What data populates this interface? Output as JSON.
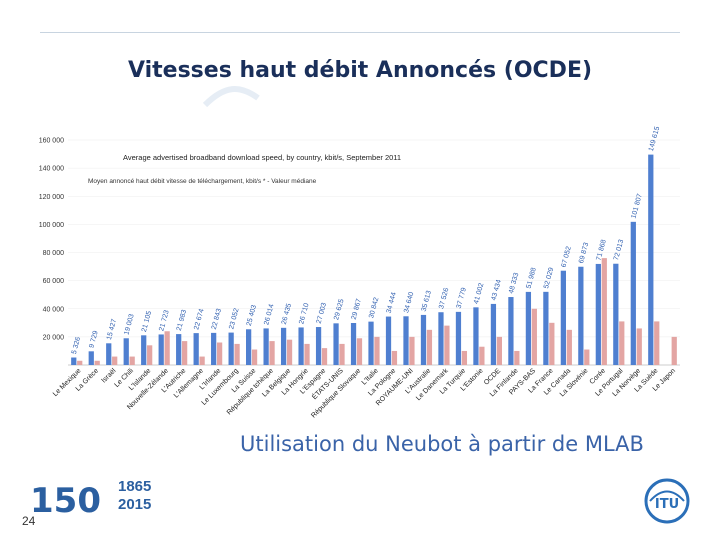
{
  "slide": {
    "title": "Vitesses haut débit Annoncés (OCDE)",
    "caption": "Utilisation du Neubot à partir de  MLAB",
    "page_number": "24",
    "anniversary_year_start": "1865",
    "anniversary_year_end": "2015",
    "anniversary_number": "150",
    "org_logo_text": "ITU"
  },
  "colors": {
    "series_mean": "#4f7fd0",
    "series_median": "#e3a5a3",
    "title": "#1a2f5a",
    "caption": "#3a63a8",
    "bar_label_mean": "#2f5fb0",
    "bar_label_median": "#b85a57"
  },
  "chart_data": {
    "type": "bar",
    "title": "Average advertised broadband download speed, by country, kbit/s, September 2011",
    "legend": "Moyen annoncé haut débit vitesse  de téléchargement, kbit/s * - Valeur médiane",
    "legend_placement": "top-left",
    "xlabel": "",
    "ylabel": "",
    "ylim": [
      0,
      160000
    ],
    "yticks": [
      "20 000",
      "40 000",
      "60 000",
      "80 000",
      "100 000",
      "120 000",
      "140 000",
      "160 000"
    ],
    "categories": [
      "Le Mexique",
      "La Grèce",
      "Israël",
      "Le Chili",
      "L'Islande",
      "Nouvelle-Zélande",
      "L'Autriche",
      "L'Allemagne",
      "L'Irlande",
      "Le Luxembourg",
      "La Suisse",
      "République tchèque",
      "La Belgique",
      "La Hongrie",
      "L'Espagne",
      "ÉTATS-UNIS",
      "République Slovaque",
      "L'Italie",
      "La Pologne",
      "ROYAUME-UNI",
      "L'Australie",
      "Le Danemark",
      "La Turquie",
      "L'Estonie",
      "OCDE",
      "La Finlande",
      "PAYS-BAS",
      "La France",
      "Le Canada",
      "La Slovénie",
      "Corée",
      "Le Portugal",
      "La Norvège",
      "La Suède",
      "Le Japon"
    ],
    "series": [
      {
        "name": "Moyen annoncé haut débit vitesse  de téléchargement, kbit/s *",
        "values": [
          5326,
          9729,
          15427,
          19003,
          21105,
          21723,
          21983,
          22674,
          22843,
          23052,
          25403,
          26014,
          26435,
          26710,
          27003,
          29625,
          29867,
          30842,
          34444,
          34640,
          35613,
          37526,
          37779,
          41002,
          43434,
          48333,
          51988,
          52029,
          67052,
          69873,
          71868,
          72013,
          101807,
          149615,
          null
        ],
        "labels": [
          "5 326",
          "9 729",
          "15 427",
          "19 003",
          "21 105",
          "21 723",
          "21 983",
          "22 674",
          "22 843",
          "23 052",
          "25 403",
          "26 014",
          "26 435",
          "26 710",
          "27 003",
          "29 625",
          "29 867",
          "30 842",
          "34 444",
          "34 640",
          "35 613",
          "37 526",
          "37 779",
          "41 002",
          "43 434",
          "48 333",
          "51 988",
          "52 029",
          "67 052",
          "69 873",
          "71 868",
          "72 013",
          "101 807",
          "149 615",
          ""
        ]
      },
      {
        "name": "Valeur médiane",
        "values": [
          3000,
          3000,
          6000,
          6000,
          14000,
          24000,
          17000,
          6000,
          16000,
          15000,
          11000,
          17000,
          18000,
          15000,
          12000,
          15000,
          19000,
          20000,
          10000,
          20000,
          25000,
          28000,
          10000,
          13000,
          20000,
          10000,
          40000,
          30000,
          25000,
          11000,
          76000,
          31000,
          26000,
          31000,
          20000
        ]
      }
    ]
  }
}
